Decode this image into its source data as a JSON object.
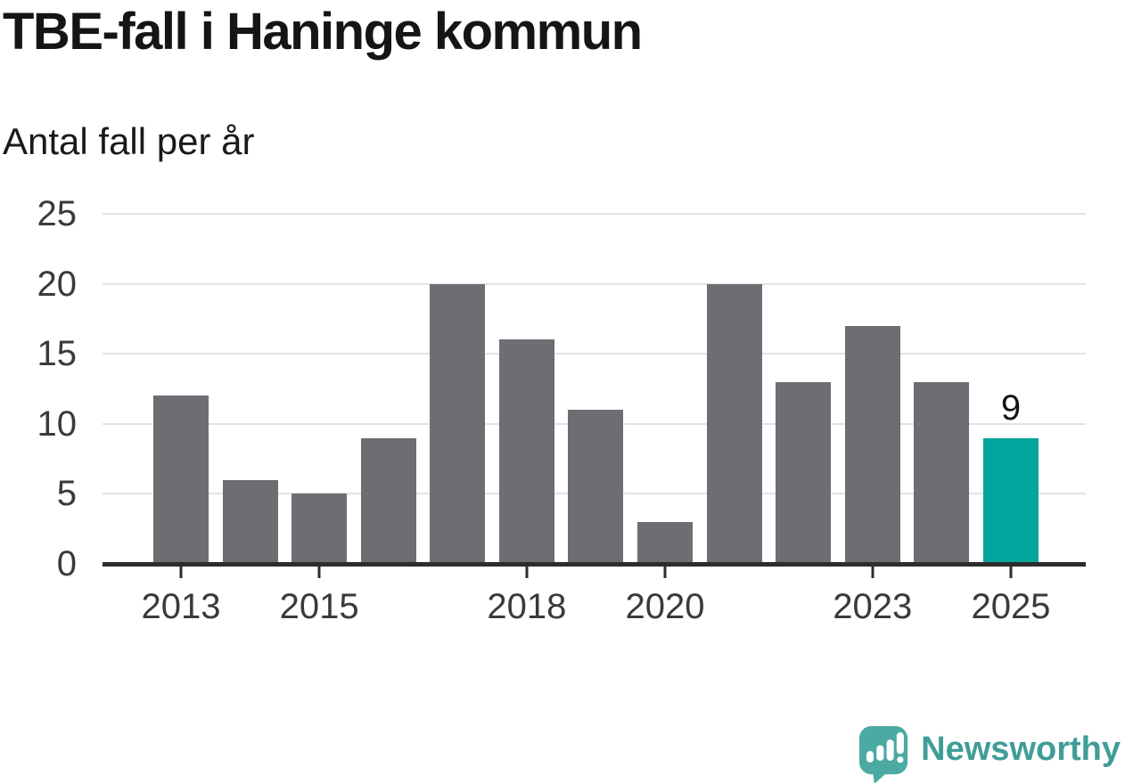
{
  "title": "TBE-fall i Haninge kommun",
  "subtitle": "Antal fall per år",
  "branding": {
    "name": "Newsworthy",
    "logo_icon": "newsworthy-speech-bubble-bar-chart-icon"
  },
  "colors": {
    "bar": "#6E6D73",
    "highlight": "#00A59B",
    "gridline": "#E2E2E2",
    "axis": "#2D2D2D",
    "tick_label": "#3A3A3A",
    "title_text": "#151515",
    "brand_teal": "#3F9D97",
    "logo_teal": "#4BABA3"
  },
  "chart_data": {
    "type": "bar",
    "title": "TBE-fall i Haninge kommun",
    "subtitle": "Antal fall per år",
    "categories": [
      "2013",
      "2014",
      "2015",
      "2016",
      "2017",
      "2018",
      "2019",
      "2020",
      "2021",
      "2022",
      "2023",
      "2024",
      "2025"
    ],
    "values": [
      12,
      6,
      5,
      9,
      20,
      16,
      11,
      3,
      20,
      13,
      17,
      13,
      9
    ],
    "xlabel": "",
    "ylabel": "Antal fall per år",
    "ylim": [
      0,
      25
    ],
    "yticks": [
      0,
      5,
      10,
      15,
      20,
      25
    ],
    "xtick_labels": [
      "2013",
      "2015",
      "2018",
      "2020",
      "2023",
      "2025"
    ],
    "highlighted_category": "2025",
    "data_labels": [
      {
        "category": "2025",
        "text": "9"
      }
    ],
    "grid": "horizontal",
    "legend": "none",
    "bar_color": "#6E6D73",
    "highlight_color": "#00A59B"
  }
}
